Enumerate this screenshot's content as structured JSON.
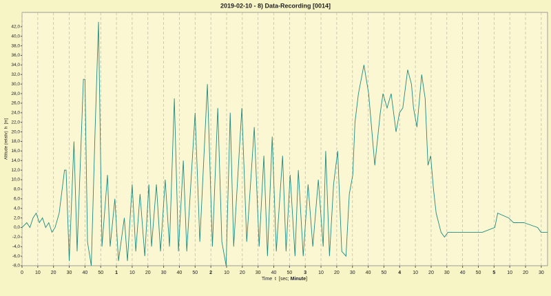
{
  "chart_data": {
    "type": "line",
    "title": "2019-02-10 - 8) Data-Recording [0014]",
    "y_label": "Altitude (relativ)  h  [m]",
    "x_label_parts": [
      "Time  t  [sec; ",
      "Minute",
      "]"
    ],
    "xlim": [
      0,
      334
    ],
    "ylim": [
      -8,
      45
    ],
    "grid": true,
    "xticks": [
      0,
      10,
      20,
      30,
      40,
      50,
      {
        "value": 60,
        "label": "1"
      },
      {
        "value": 70,
        "label": "10"
      },
      {
        "value": 80,
        "label": "20"
      },
      {
        "value": 90,
        "label": "30"
      },
      {
        "value": 100,
        "label": "40"
      },
      {
        "value": 110,
        "label": "50"
      },
      {
        "value": 120,
        "label": "2"
      },
      {
        "value": 130,
        "label": "10"
      },
      {
        "value": 140,
        "label": "20"
      },
      {
        "value": 150,
        "label": "30"
      },
      {
        "value": 160,
        "label": "40"
      },
      {
        "value": 170,
        "label": "50"
      },
      {
        "value": 180,
        "label": "3"
      },
      {
        "value": 190,
        "label": "10"
      },
      {
        "value": 200,
        "label": "20"
      },
      {
        "value": 210,
        "label": "30"
      },
      {
        "value": 220,
        "label": "40"
      },
      {
        "value": 230,
        "label": "50"
      },
      {
        "value": 240,
        "label": "4"
      },
      {
        "value": 250,
        "label": "10"
      },
      {
        "value": 260,
        "label": "20"
      },
      {
        "value": 270,
        "label": "30"
      },
      {
        "value": 280,
        "label": "40"
      },
      {
        "value": 290,
        "label": "50"
      },
      {
        "value": 300,
        "label": "5"
      },
      {
        "value": 310,
        "label": "10"
      },
      {
        "value": 320,
        "label": "20"
      },
      {
        "value": 330,
        "label": "30"
      }
    ],
    "yticks": [
      {
        "value": -8,
        "label": "-8,0"
      },
      {
        "value": -6,
        "label": "-6,0"
      },
      {
        "value": -4,
        "label": "-4,0"
      },
      {
        "value": -2,
        "label": "-2,0"
      },
      {
        "value": 0,
        "label": "0,0"
      },
      {
        "value": 2,
        "label": "2,0"
      },
      {
        "value": 4,
        "label": "4,0"
      },
      {
        "value": 6,
        "label": "6,0"
      },
      {
        "value": 8,
        "label": "8,0"
      },
      {
        "value": 10,
        "label": "10,0"
      },
      {
        "value": 12,
        "label": "12,0"
      },
      {
        "value": 14,
        "label": "14,0"
      },
      {
        "value": 16,
        "label": "16,0"
      },
      {
        "value": 18,
        "label": "18,0"
      },
      {
        "value": 20,
        "label": "20,0"
      },
      {
        "value": 22,
        "label": "22,0"
      },
      {
        "value": 24,
        "label": "24,0"
      },
      {
        "value": 26,
        "label": "26,0"
      },
      {
        "value": 28,
        "label": "28,0"
      },
      {
        "value": 30,
        "label": "30,0"
      },
      {
        "value": 32,
        "label": "32,0"
      },
      {
        "value": 34,
        "label": "34,0"
      },
      {
        "value": 36,
        "label": "36,0"
      },
      {
        "value": 38,
        "label": "38,0"
      },
      {
        "value": 40,
        "label": "40,0"
      },
      {
        "value": 42,
        "label": "42,0"
      }
    ],
    "series": [
      {
        "color": "#1f8a80",
        "x": [
          0,
          3,
          5,
          7,
          9,
          11,
          13,
          15,
          17,
          19,
          21,
          23.6,
          27,
          28,
          30,
          33,
          35,
          39,
          40,
          41.6,
          44,
          46.4,
          48.6,
          50.8,
          54.3,
          56,
          59,
          61.3,
          65,
          67,
          70,
          72.3,
          75,
          78,
          80.6,
          82.3,
          85.4,
          88,
          91,
          93.7,
          96.8,
          99.4,
          102.5,
          104.7,
          110,
          113,
          117.8,
          121,
          124.4,
          127,
          129.7,
          132.3,
          134.5,
          139.7,
          142.8,
          147.6,
          150.7,
          153.7,
          156,
          159,
          161.6,
          165.6,
          167.8,
          170.4,
          173.5,
          175.6,
          178.7,
          181.8,
          184.8,
          188.3,
          191.4,
          193,
          195.4,
          198,
          200.6,
          203.2,
          205.9,
          208,
          210.2,
          211.6,
          213.8,
          217.3,
          220.3,
          224.2,
          227.7,
          229.4,
          232,
          234.6,
          237.7,
          239.9,
          242,
          245.1,
          247.5,
          248.8,
          251,
          254,
          256.2,
          258,
          259.7,
          261.5,
          263.2,
          266.3,
          268.5,
          270.7,
          292.6,
          300.5,
          302.3,
          309.3,
          312.4,
          319,
          327.7,
          329.8,
          334
        ],
        "values": [
          0,
          1,
          0,
          2,
          3,
          1,
          2,
          0,
          1,
          -1,
          0,
          3,
          12,
          12,
          -7,
          18,
          -5,
          31,
          31,
          -3,
          -8,
          20,
          43,
          -4,
          11,
          -4,
          6,
          -7,
          2,
          -7,
          9,
          -5,
          7,
          -6,
          9,
          -4,
          9,
          -5,
          10,
          -4,
          27,
          -5,
          14,
          -5,
          24,
          -3,
          30,
          -4,
          25,
          -3,
          -8,
          24,
          -4,
          25,
          -3,
          21,
          -4,
          15,
          -6,
          19,
          -5,
          15,
          -5,
          11,
          -6,
          12,
          -6,
          9,
          -4,
          10,
          -4,
          16,
          -6,
          9,
          16,
          -5,
          -6,
          7,
          11,
          22,
          28,
          34,
          28,
          13,
          24,
          28,
          25,
          28,
          20,
          24,
          25,
          33,
          30,
          25,
          21,
          32,
          27,
          13,
          15,
          8,
          3,
          -1,
          -2,
          -1,
          -1,
          0,
          3,
          2,
          1,
          1,
          0,
          -1,
          -1
        ]
      }
    ]
  }
}
